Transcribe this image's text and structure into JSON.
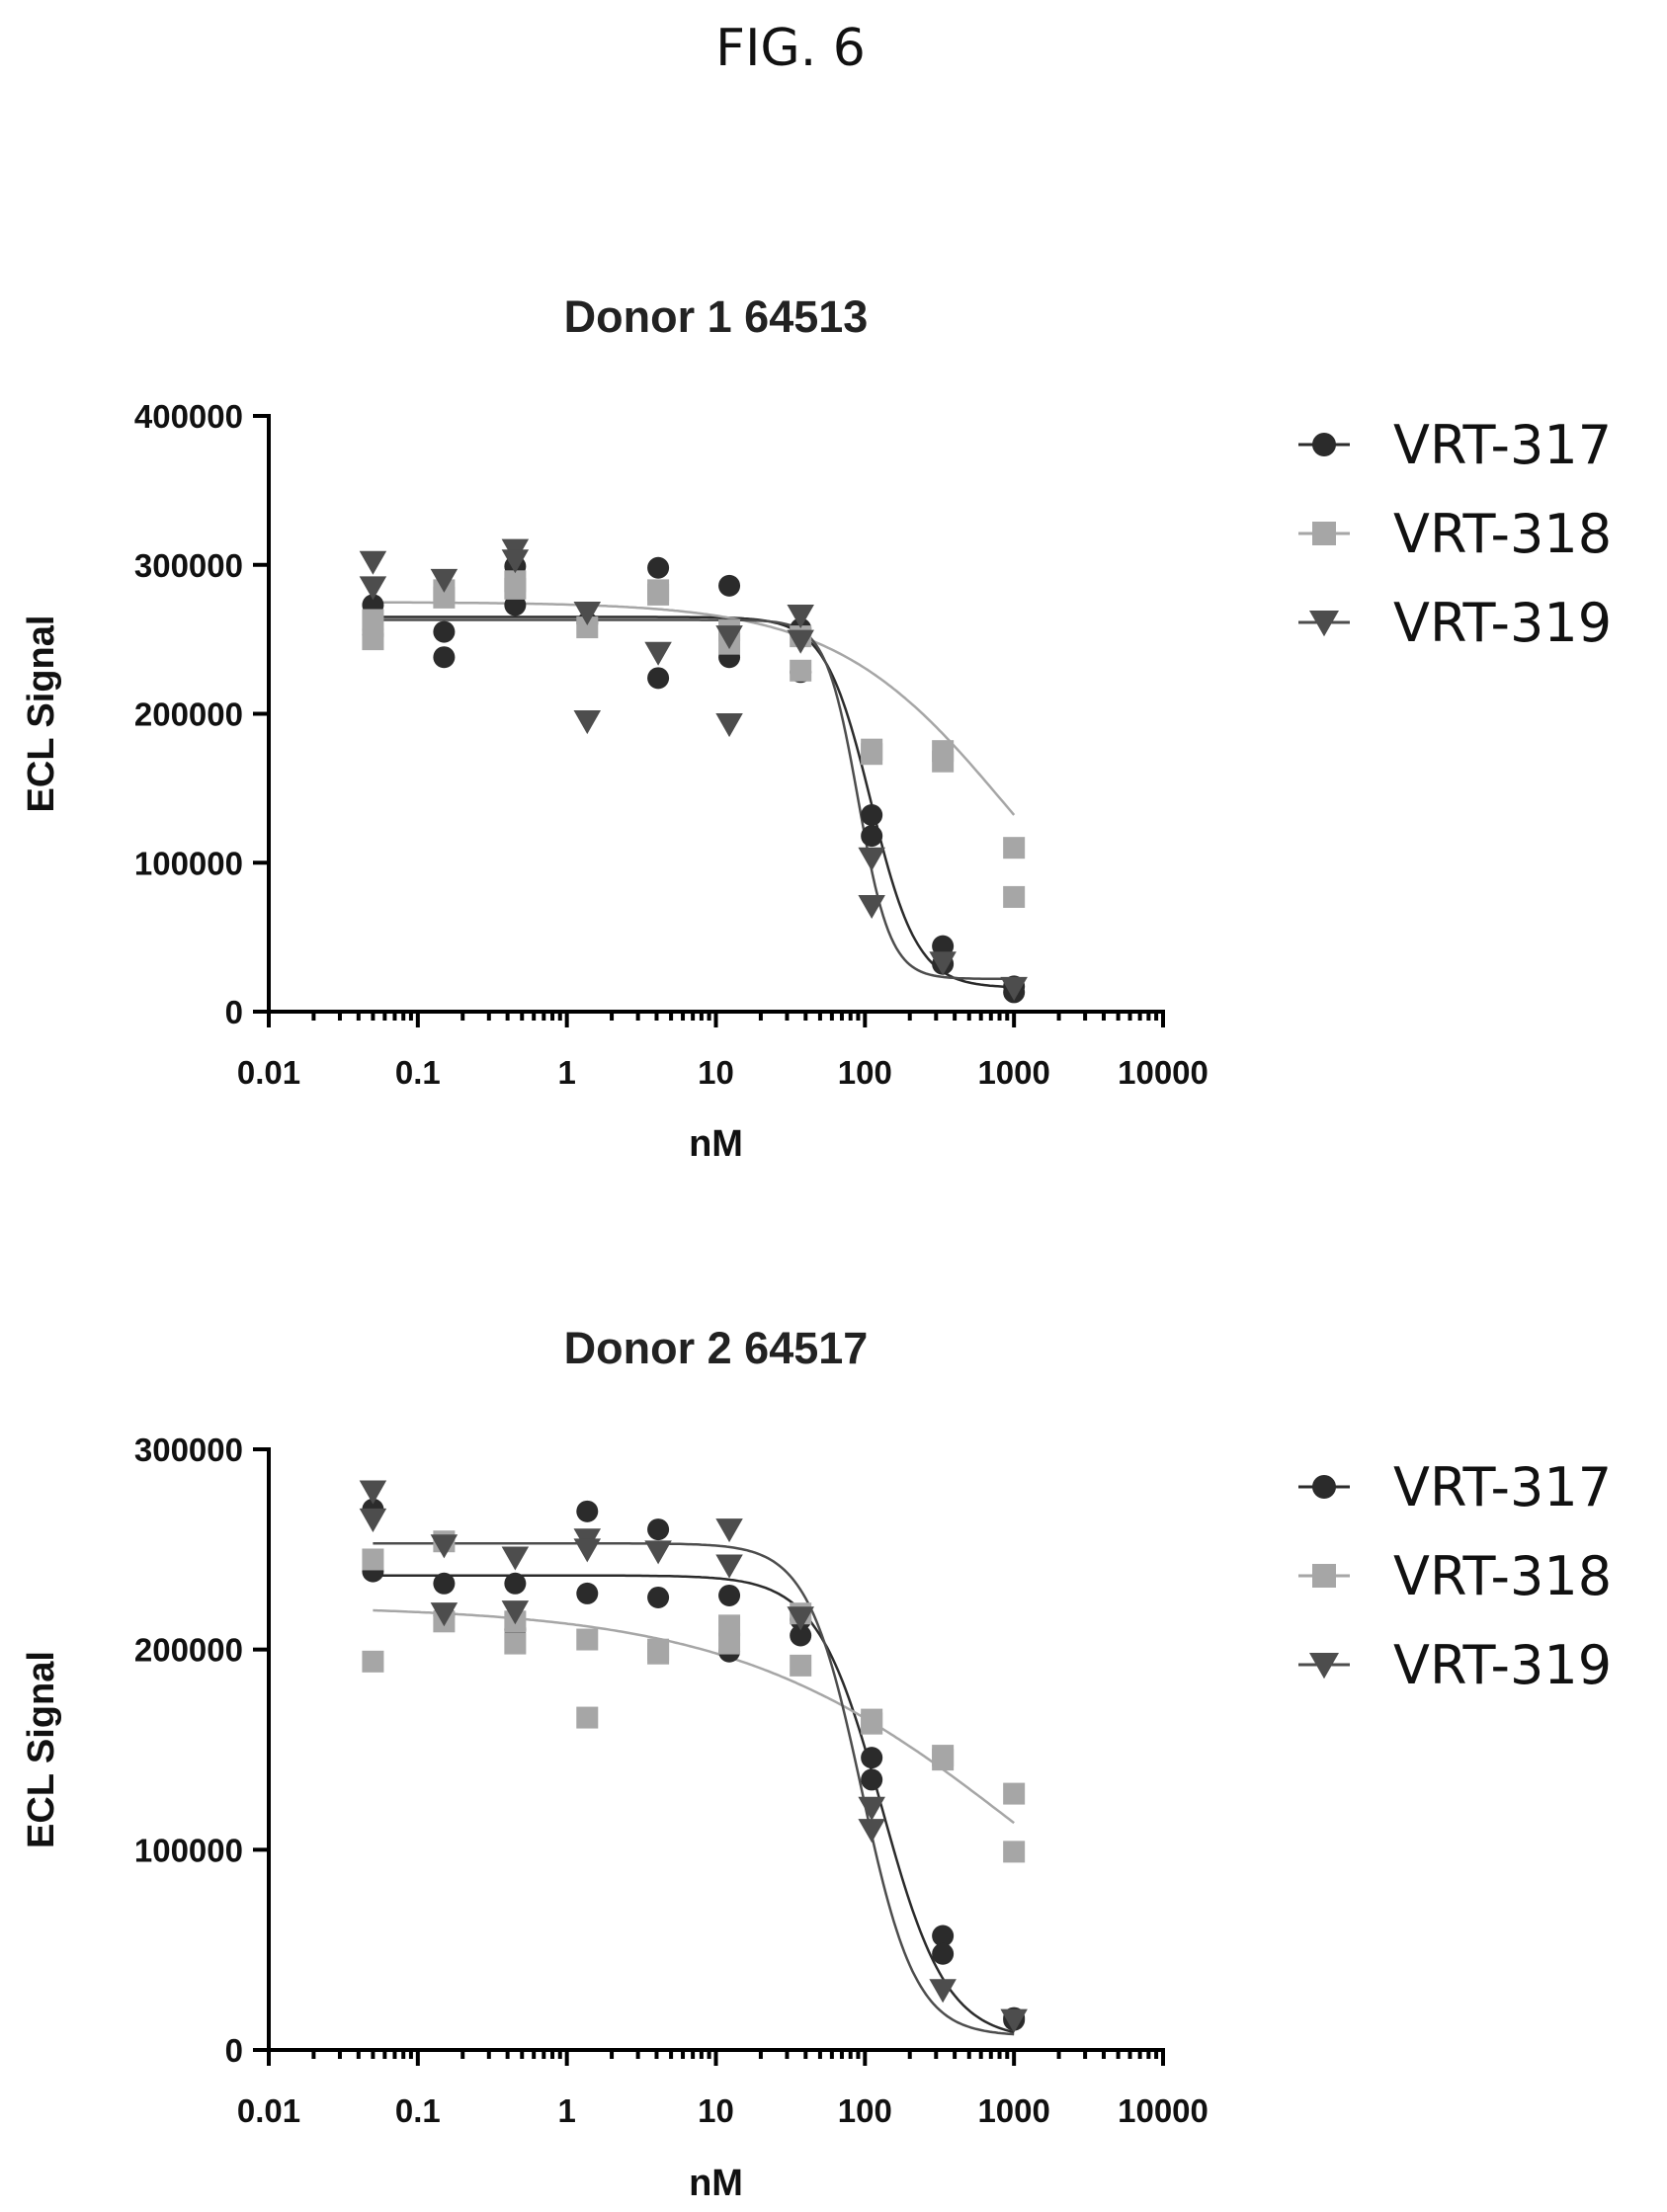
{
  "figure_label": "FIG. 6",
  "chart_data": [
    {
      "type": "scatter",
      "title": "Donor 1 64513",
      "xlabel": "nM",
      "ylabel": "ECL Signal",
      "xscale": "log",
      "xlim": [
        0.01,
        10000
      ],
      "ylim": [
        0,
        400000
      ],
      "xticks": [
        "0.01",
        "0.1",
        "1",
        "10",
        "100",
        "1000",
        "10000"
      ],
      "yticks": [
        "0",
        "100000",
        "200000",
        "300000",
        "400000"
      ],
      "legend_position": "right",
      "grid": false,
      "series": [
        {
          "name": "VRT-317",
          "marker": "circle",
          "color": "#2b2b2b",
          "points": [
            [
              0.05,
              273000
            ],
            [
              0.05,
              253000
            ],
            [
              0.15,
              255000
            ],
            [
              0.15,
              238000
            ],
            [
              0.45,
              299000
            ],
            [
              0.45,
              273000
            ],
            [
              1.37,
              261000
            ],
            [
              4.1,
              298000
            ],
            [
              4.1,
              224000
            ],
            [
              12.3,
              286000
            ],
            [
              12.3,
              238000
            ],
            [
              37,
              257000
            ],
            [
              37,
              228000
            ],
            [
              111,
              132000
            ],
            [
              111,
              118000
            ],
            [
              333,
              44000
            ],
            [
              333,
              32000
            ],
            [
              1000,
              17000
            ],
            [
              1000,
              13000
            ]
          ],
          "fit": {
            "top": 265000,
            "bottom": 16000,
            "ic50": 110,
            "hill": 2.8
          }
        },
        {
          "name": "VRT-318",
          "marker": "square",
          "color": "#a6a6a6",
          "points": [
            [
              0.05,
              263000
            ],
            [
              0.05,
              250000
            ],
            [
              0.15,
              283000
            ],
            [
              0.15,
              278000
            ],
            [
              0.45,
              289000
            ],
            [
              0.45,
              284000
            ],
            [
              1.37,
              258000
            ],
            [
              4.1,
              283000
            ],
            [
              4.1,
              280000
            ],
            [
              12.3,
              256000
            ],
            [
              12.3,
              247000
            ],
            [
              37,
              252000
            ],
            [
              37,
              229000
            ],
            [
              111,
              176000
            ],
            [
              111,
              173000
            ],
            [
              333,
              175000
            ],
            [
              333,
              168000
            ],
            [
              1000,
              110000
            ],
            [
              1000,
              77000
            ]
          ],
          "fit": {
            "top": 275000,
            "bottom": 0,
            "ic50": 900,
            "hill": 0.75
          }
        },
        {
          "name": "VRT-319",
          "marker": "triangle-down",
          "color": "#4d4d4d",
          "points": [
            [
              0.05,
              302000
            ],
            [
              0.05,
              285000
            ],
            [
              0.15,
              290000
            ],
            [
              0.45,
              310000
            ],
            [
              0.45,
              303000
            ],
            [
              1.37,
              268000
            ],
            [
              1.37,
              195000
            ],
            [
              4.1,
              241000
            ],
            [
              12.3,
              252000
            ],
            [
              12.3,
              193000
            ],
            [
              37,
              266000
            ],
            [
              37,
              249000
            ],
            [
              111,
              103000
            ],
            [
              111,
              71000
            ],
            [
              333,
              33000
            ],
            [
              1000,
              16000
            ]
          ],
          "fit": {
            "top": 263000,
            "bottom": 22000,
            "ic50": 90,
            "hill": 4.0
          }
        }
      ]
    },
    {
      "type": "scatter",
      "title": "Donor 2 64517",
      "xlabel": "nM",
      "ylabel": "ECL Signal",
      "xscale": "log",
      "xlim": [
        0.01,
        10000
      ],
      "ylim": [
        0,
        300000
      ],
      "xticks": [
        "0.01",
        "0.1",
        "1",
        "10",
        "100",
        "1000",
        "10000"
      ],
      "yticks": [
        "0",
        "100000",
        "200000",
        "300000"
      ],
      "legend_position": "right",
      "grid": false,
      "series": [
        {
          "name": "VRT-317",
          "marker": "circle",
          "color": "#2b2b2b",
          "points": [
            [
              0.05,
              270000
            ],
            [
              0.05,
              239000
            ],
            [
              0.15,
              233000
            ],
            [
              0.15,
              217000
            ],
            [
              0.45,
              233000
            ],
            [
              0.45,
              210000
            ],
            [
              1.37,
              269000
            ],
            [
              1.37,
              228000
            ],
            [
              4.1,
              260000
            ],
            [
              4.1,
              226000
            ],
            [
              12.3,
              227000
            ],
            [
              12.3,
              199000
            ],
            [
              37,
              215000
            ],
            [
              37,
              207000
            ],
            [
              111,
              146000
            ],
            [
              111,
              135000
            ],
            [
              333,
              57000
            ],
            [
              333,
              48000
            ],
            [
              1000,
              16000
            ],
            [
              1000,
              15000
            ]
          ],
          "fit": {
            "top": 237000,
            "bottom": 5000,
            "ic50": 130,
            "hill": 2.0
          }
        },
        {
          "name": "VRT-318",
          "marker": "square",
          "color": "#a6a6a6",
          "points": [
            [
              0.05,
              245000
            ],
            [
              0.05,
              194000
            ],
            [
              0.15,
              254000
            ],
            [
              0.15,
              214000
            ],
            [
              0.45,
              214000
            ],
            [
              0.45,
              203000
            ],
            [
              1.37,
              205000
            ],
            [
              1.37,
              166000
            ],
            [
              4.1,
              200000
            ],
            [
              4.1,
              198000
            ],
            [
              12.3,
              212000
            ],
            [
              12.3,
              203000
            ],
            [
              37,
              218000
            ],
            [
              37,
              192000
            ],
            [
              111,
              165000
            ],
            [
              111,
              163000
            ],
            [
              333,
              147000
            ],
            [
              333,
              145000
            ],
            [
              1000,
              128000
            ],
            [
              1000,
              99000
            ]
          ],
          "fit": {
            "top": 222000,
            "bottom": 0,
            "ic50": 1100,
            "hill": 0.45
          }
        },
        {
          "name": "VRT-319",
          "marker": "triangle-down",
          "color": "#4d4d4d",
          "points": [
            [
              0.05,
              279000
            ],
            [
              0.05,
              265000
            ],
            [
              0.15,
              252000
            ],
            [
              0.15,
              218000
            ],
            [
              0.45,
              246000
            ],
            [
              0.45,
              219000
            ],
            [
              1.37,
              255000
            ],
            [
              1.37,
              250000
            ],
            [
              4.1,
              249000
            ],
            [
              12.3,
              260000
            ],
            [
              12.3,
              242000
            ],
            [
              37,
              216000
            ],
            [
              111,
              121000
            ],
            [
              111,
              110000
            ],
            [
              333,
              30000
            ],
            [
              1000,
              15000
            ]
          ],
          "fit": {
            "top": 253000,
            "bottom": 7000,
            "ic50": 95,
            "hill": 2.4
          }
        }
      ]
    }
  ]
}
